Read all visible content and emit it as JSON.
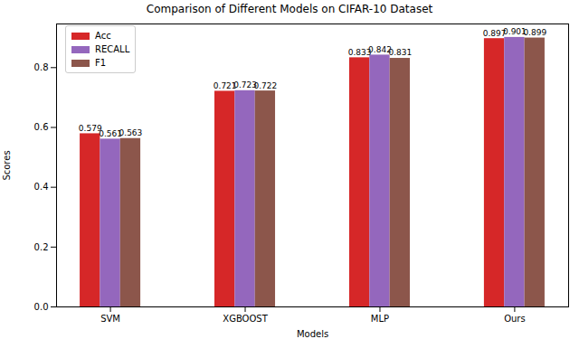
{
  "chart_data": {
    "type": "bar",
    "title": "Comparison of Different Models on CIFAR-10 Dataset",
    "x_label": "Models",
    "y_label": "Scores",
    "categories": [
      "SVM",
      "XGBOOST",
      "MLP",
      "Ours"
    ],
    "series": [
      {
        "name": "Acc",
        "color": "#d62728",
        "values": [
          0.579,
          0.721,
          0.833,
          0.897
        ]
      },
      {
        "name": "RECALL",
        "color": "#9467bd",
        "values": [
          0.561,
          0.723,
          0.842,
          0.901
        ]
      },
      {
        "name": "F1",
        "color": "#8c564b",
        "values": [
          0.563,
          0.722,
          0.831,
          0.899
        ]
      }
    ],
    "ylim": [
      0,
      0.946
    ],
    "yticks": [
      {
        "value": 0,
        "label": "0.0"
      },
      {
        "value": 0.2,
        "label": "0.2"
      },
      {
        "value": 0.4,
        "label": "0.4"
      },
      {
        "value": 0.6,
        "label": "0.6"
      },
      {
        "value": 0.8,
        "label": "0.8"
      }
    ],
    "legend": "upper left",
    "data_labels": true,
    "grid": false
  }
}
